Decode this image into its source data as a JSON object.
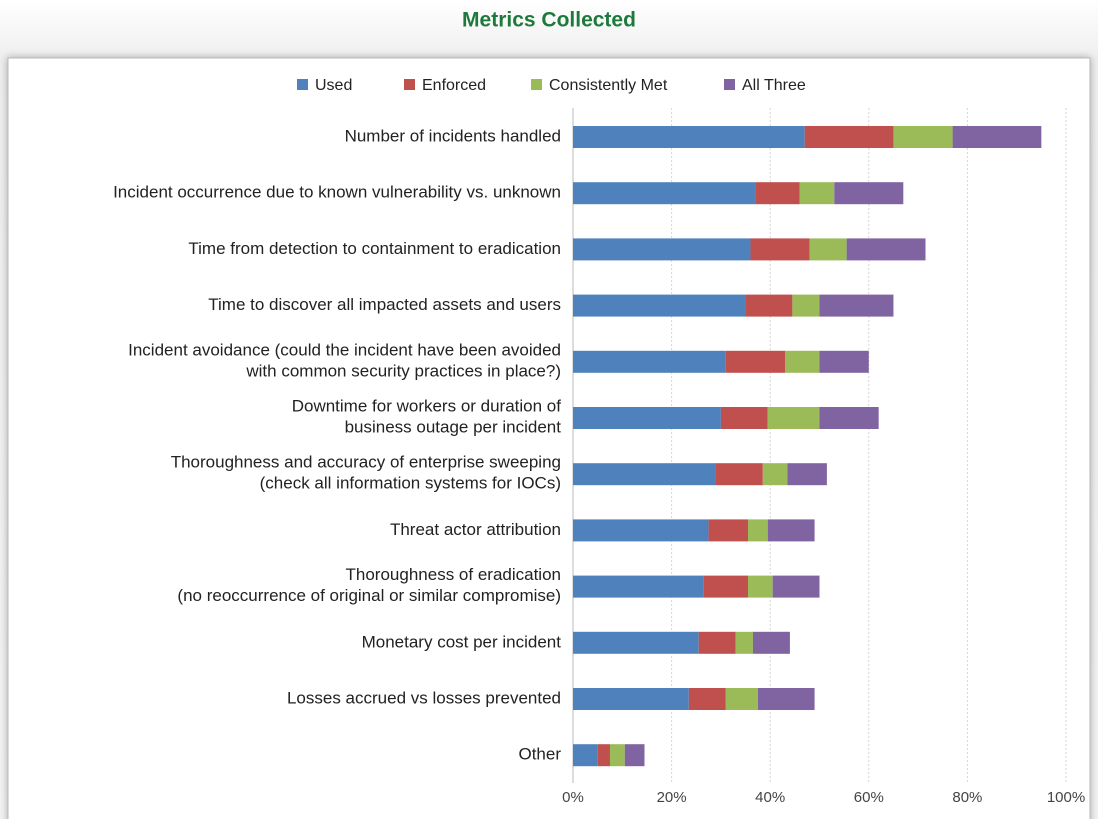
{
  "chart_data": {
    "type": "stacked_barh",
    "title": "Metrics Collected",
    "categories": [
      "Number of incidents handled",
      "Incident occurrence due to known vulnerability vs. unknown",
      "Time from detection to containment to eradication",
      "Time to discover all impacted assets and users",
      "Incident avoidance (could the incident have been avoided\nwith common security practices in place?)",
      "Downtime for workers or duration of\nbusiness outage per incident",
      "Thoroughness and accuracy of enterprise sweeping\n(check all information systems for IOCs)",
      "Threat actor attribution",
      "Thoroughness of eradication\n(no reoccurrence of original or similar compromise)",
      "Monetary cost per incident",
      "Losses accrued vs losses prevented",
      "Other"
    ],
    "series": [
      {
        "name": "Used",
        "color": "#4f81bd",
        "values": [
          47,
          37,
          36,
          35,
          31,
          30,
          29,
          27.5,
          26.5,
          25.5,
          23.5,
          5
        ]
      },
      {
        "name": "Enforced",
        "color": "#c0504d",
        "values": [
          18,
          9,
          12,
          9.5,
          12,
          9.5,
          9.5,
          8,
          9,
          7.5,
          7.5,
          2.5
        ]
      },
      {
        "name": "Consistently Met",
        "color": "#9bbb59",
        "values": [
          12,
          7,
          7.5,
          5.5,
          7,
          10.5,
          5,
          4,
          5,
          3.5,
          6.5,
          3
        ]
      },
      {
        "name": "All Three",
        "color": "#8064a2",
        "values": [
          18,
          14,
          16,
          15,
          10,
          12,
          8,
          9.5,
          9.5,
          7.5,
          11.5,
          4
        ]
      }
    ],
    "xlim": [
      0,
      100
    ],
    "xticks": [
      {
        "value": 0,
        "label": "0%"
      },
      {
        "value": 20,
        "label": "20%"
      },
      {
        "value": 40,
        "label": "40%"
      },
      {
        "value": 60,
        "label": "60%"
      },
      {
        "value": 80,
        "label": "80%"
      },
      {
        "value": 100,
        "label": "100%"
      }
    ],
    "grid": true,
    "legend": "top"
  }
}
